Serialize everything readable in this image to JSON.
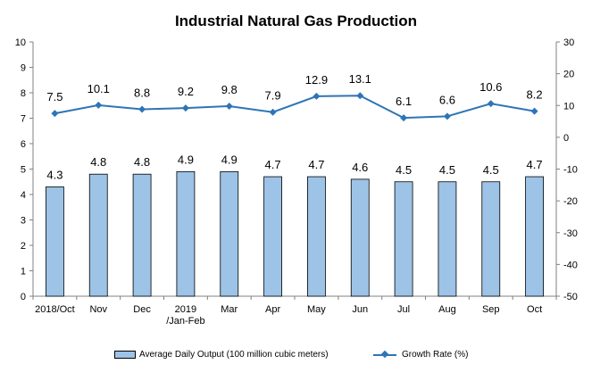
{
  "chart_data": {
    "type": "bar",
    "title": "Industrial Natural Gas Production",
    "categories": [
      "2018/Oct",
      "Nov",
      "Dec",
      "2019\n/Jan-Feb",
      "Mar",
      "Apr",
      "May",
      "Jun",
      "Jul",
      "Aug",
      "Sep",
      "Oct"
    ],
    "series": [
      {
        "name": "Average Daily Output (100 million cubic meters)",
        "type": "bar",
        "axis": "left",
        "color": "#9dc3e6",
        "values": [
          4.3,
          4.8,
          4.8,
          4.9,
          4.9,
          4.7,
          4.7,
          4.6,
          4.5,
          4.5,
          4.5,
          4.7
        ],
        "labels": [
          "4.3",
          "4.8",
          "4.8",
          "4.9",
          "4.9",
          "4.7",
          "4.7",
          "4.6",
          "4.5",
          "4.5",
          "4.5",
          "4.7"
        ]
      },
      {
        "name": "Growth Rate (%)",
        "type": "line",
        "axis": "right",
        "color": "#2e75b6",
        "values": [
          7.5,
          10.1,
          8.8,
          9.2,
          9.8,
          7.9,
          12.9,
          13.1,
          6.1,
          6.6,
          10.6,
          8.2
        ],
        "labels": [
          "7.5",
          "10.1",
          "8.8",
          "9.2",
          "9.8",
          "7.9",
          "12.9",
          "13.1",
          "6.1",
          "6.6",
          "10.6",
          "8.2"
        ]
      }
    ],
    "y_left": {
      "min": 0,
      "max": 10,
      "ticks": [
        "0",
        "1",
        "2",
        "3",
        "4",
        "5",
        "6",
        "7",
        "8",
        "9",
        "10"
      ]
    },
    "y_right": {
      "min": -50,
      "max": 30,
      "ticks": [
        "-50",
        "-40",
        "-30",
        "-20",
        "-10",
        "0",
        "10",
        "20",
        "30"
      ]
    },
    "grid": false,
    "legend_position": "bottom"
  }
}
